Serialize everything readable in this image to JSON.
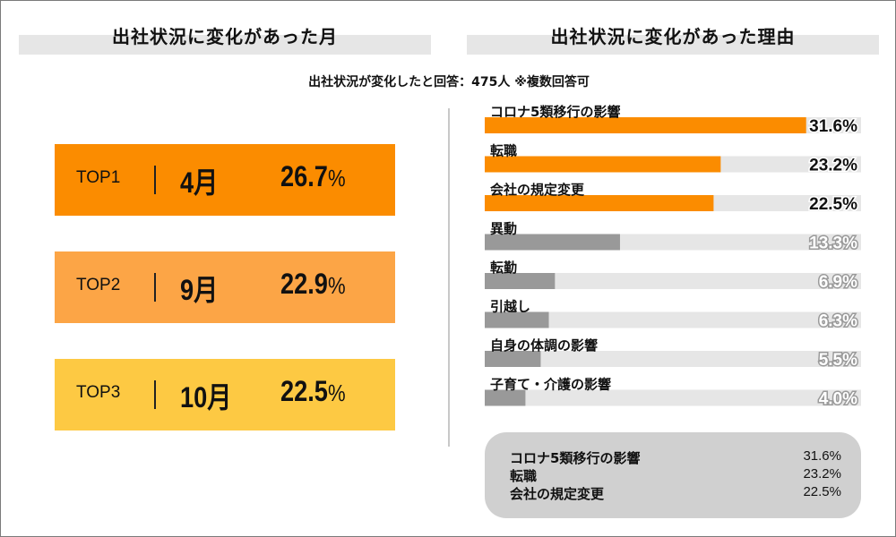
{
  "left_title": "出社状況に変化があった月",
  "right_title": "出社状況に変化があった理由",
  "note": "出社状況が変化したと回答：475人 ※複数回答可",
  "top_months": [
    {
      "rank": "TOP1",
      "month": "4月",
      "value": "26.7",
      "unit": "%",
      "color": "#fb8c00"
    },
    {
      "rank": "TOP2",
      "month": "9月",
      "value": "22.9",
      "unit": "%",
      "color": "#fca546"
    },
    {
      "rank": "TOP3",
      "month": "10月",
      "value": "22.5",
      "unit": "%",
      "color": "#fdc943"
    }
  ],
  "chart_data": {
    "type": "bar",
    "orientation": "horizontal",
    "categories": [
      "コロナ5類移行の影響",
      "転職",
      "会社の規定変更",
      "異動",
      "転勤",
      "引越し",
      "自身の体調の影響",
      "子育て・介護の影響"
    ],
    "values": [
      31.6,
      23.2,
      22.5,
      13.3,
      6.9,
      6.3,
      5.5,
      4.0
    ],
    "value_labels": [
      "31.6%",
      "23.2%",
      "22.5%",
      "13.3%",
      "6.9%",
      "6.3%",
      "5.5%",
      "4.0%"
    ],
    "xlim": [
      0,
      37
    ],
    "highlight_color": "#fb8c00",
    "bar_color": "#999999",
    "track_color": "#e6e6e6",
    "highlight_count": 3
  },
  "summary": [
    {
      "label": "コロナ5類移行の影響",
      "value": "31.6%"
    },
    {
      "label": "転職",
      "value": "23.2%"
    },
    {
      "label": "会社の規定変更",
      "value": "22.5%"
    }
  ]
}
